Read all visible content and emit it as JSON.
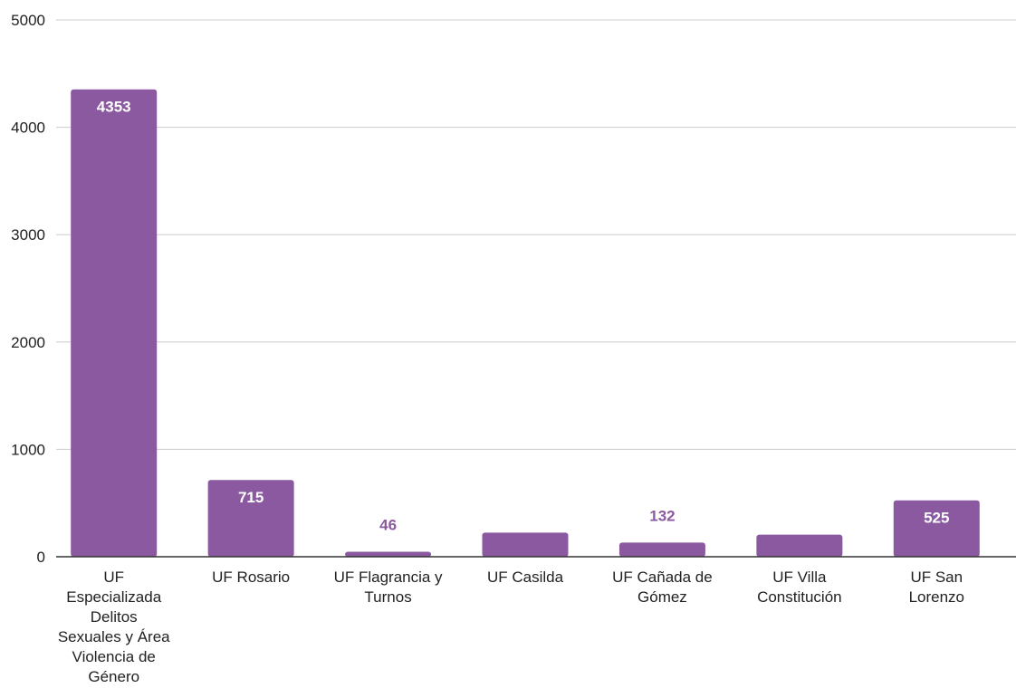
{
  "chart_data": {
    "type": "bar",
    "title": "",
    "xlabel": "",
    "ylabel": "",
    "categories": [
      [
        "UF",
        "Especializada",
        "Delitos",
        "Sexuales y Área",
        "Violencia de",
        "Género"
      ],
      [
        "UF Rosario"
      ],
      [
        "UF Flagrancia y",
        "Turnos"
      ],
      [
        "UF Casilda"
      ],
      [
        "UF Cañada de",
        "Gómez"
      ],
      [
        "UF Villa",
        "Constitución"
      ],
      [
        "UF San",
        "Lorenzo"
      ]
    ],
    "values": [
      4353,
      715,
      46,
      225,
      132,
      205,
      525
    ],
    "data_labels": [
      "4353",
      "715",
      "46",
      "",
      "132",
      "",
      "525"
    ],
    "ylim": [
      0,
      5000
    ],
    "yticks": [
      0,
      1000,
      2000,
      3000,
      4000,
      5000
    ],
    "grid": true,
    "legend": "none",
    "bar_color": "#8a59a0",
    "label_inside_color": "#ffffff",
    "label_outside_color": "#8a59a0",
    "grid_color": "#cccccc",
    "axis_color": "#333333",
    "text_color": "#222222"
  }
}
